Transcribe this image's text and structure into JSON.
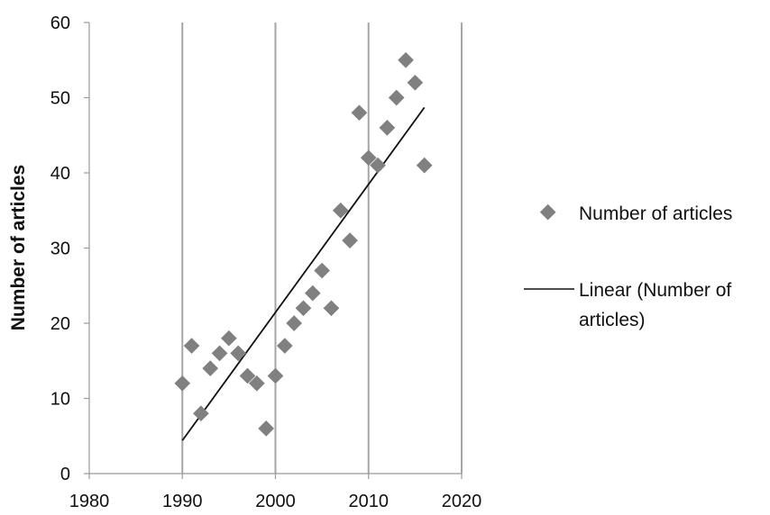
{
  "chart_data": {
    "type": "scatter",
    "title": "",
    "xlabel": "",
    "ylabel": "Number of articles",
    "xlim": [
      1980,
      2020
    ],
    "ylim": [
      0,
      60
    ],
    "xticks": [
      "1980",
      "1990",
      "2000",
      "2010",
      "2020"
    ],
    "yticks": [
      "0",
      "10",
      "20",
      "30",
      "40",
      "50",
      "60"
    ],
    "grid": "vertical",
    "legend_position": "right",
    "series": [
      {
        "name": "Number of articles",
        "type": "scatter",
        "marker": "diamond",
        "color": "#808080",
        "x": [
          1990,
          1991,
          1992,
          1993,
          1994,
          1995,
          1996,
          1997,
          1998,
          1999,
          2000,
          2001,
          2002,
          2003,
          2004,
          2005,
          2006,
          2007,
          2008,
          2009,
          2010,
          2011,
          2012,
          2013,
          2014,
          2015,
          2016
        ],
        "y": [
          12,
          17,
          8,
          14,
          16,
          18,
          16,
          13,
          12,
          6,
          13,
          17,
          20,
          22,
          24,
          27,
          22,
          35,
          31,
          48,
          42,
          41,
          46,
          50,
          55,
          52,
          41
        ]
      },
      {
        "name": "Linear (Number of articles)",
        "type": "line",
        "color": "#111111",
        "x": [
          1990,
          2016
        ],
        "y": [
          4.4,
          48.7
        ]
      }
    ]
  }
}
